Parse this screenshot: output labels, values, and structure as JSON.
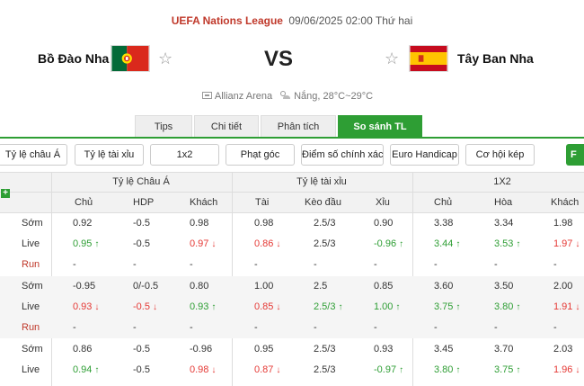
{
  "match": {
    "league": "UEFA Nations League",
    "datetime": "09/06/2025 02:00 Thứ hai",
    "home_team": "Bồ Đào Nha",
    "away_team": "Tây Ban Nha",
    "vs": "VS",
    "venue": "Allianz Arena",
    "weather": "Nắng, 28°C~29°C"
  },
  "tabs": [
    {
      "label": "Tips",
      "active": false
    },
    {
      "label": "Chi tiết",
      "active": false
    },
    {
      "label": "Phân tích",
      "active": false
    },
    {
      "label": "So sánh TL",
      "active": true
    }
  ],
  "subtabs": [
    "Tỷ lệ châu Á",
    "Tỷ lệ tài xỉu",
    "1x2",
    "Phạt góc",
    "Điểm số chính xác",
    "Euro Handicap",
    "Cơ hội kép"
  ],
  "subtab_right": "F",
  "table": {
    "plus": "+",
    "groups": [
      "Tỷ lệ Châu Á",
      "Tỷ lệ tài xỉu",
      "1X2"
    ],
    "columns": [
      "Chủ",
      "HDP",
      "Khách",
      "Tài",
      "Kèo đầu",
      "Xỉu",
      "Chủ",
      "Hòa",
      "Khách"
    ],
    "rows": [
      {
        "label": "Sớm",
        "type": "early",
        "cells": [
          "0.92",
          "-0.5",
          "0.98",
          "0.98",
          "2.5/3",
          "0.90",
          "3.38",
          "3.34",
          "1.98"
        ],
        "dirs": [
          "",
          "",
          "",
          "",
          "",
          "",
          "",
          "",
          ""
        ]
      },
      {
        "label": "Live",
        "type": "live",
        "cells": [
          "0.95",
          "-0.5",
          "0.97",
          "0.86",
          "2.5/3",
          "-0.96",
          "3.44",
          "3.53",
          "1.97"
        ],
        "dirs": [
          "up",
          "",
          "down",
          "down",
          "",
          "up",
          "up",
          "up",
          "down"
        ]
      },
      {
        "label": "Run",
        "type": "run",
        "cells": [
          "-",
          "-",
          "-",
          "-",
          "-",
          "-",
          "-",
          "-",
          "-"
        ],
        "dirs": [
          "",
          "",
          "",
          "",
          "",
          "",
          "",
          "",
          ""
        ]
      },
      {
        "label": "Sớm",
        "type": "early",
        "cells": [
          "-0.95",
          "0/-0.5",
          "0.80",
          "1.00",
          "2.5",
          "0.85",
          "3.60",
          "3.50",
          "2.00"
        ],
        "dirs": [
          "",
          "",
          "",
          "",
          "",
          "",
          "",
          "",
          ""
        ]
      },
      {
        "label": "Live",
        "type": "live",
        "cells": [
          "0.93",
          "-0.5",
          "0.93",
          "0.85",
          "2.5/3",
          "1.00",
          "3.75",
          "3.80",
          "1.91"
        ],
        "dirs": [
          "down",
          "down",
          "up",
          "down",
          "up",
          "up",
          "up",
          "up",
          "down"
        ]
      },
      {
        "label": "Run",
        "type": "run",
        "cells": [
          "-",
          "-",
          "-",
          "-",
          "-",
          "-",
          "-",
          "-",
          "-"
        ],
        "dirs": [
          "",
          "",
          "",
          "",
          "",
          "",
          "",
          "",
          ""
        ]
      },
      {
        "label": "Sớm",
        "type": "early",
        "cells": [
          "0.86",
          "-0.5",
          "-0.96",
          "0.95",
          "2.5/3",
          "0.93",
          "3.45",
          "3.70",
          "2.03"
        ],
        "dirs": [
          "",
          "",
          "",
          "",
          "",
          "",
          "",
          "",
          ""
        ]
      },
      {
        "label": "Live",
        "type": "live",
        "cells": [
          "0.94",
          "-0.5",
          "0.98",
          "0.87",
          "2.5/3",
          "-0.97",
          "3.80",
          "3.75",
          "1.96"
        ],
        "dirs": [
          "up",
          "",
          "down",
          "down",
          "",
          "up",
          "up",
          "up",
          "down"
        ]
      }
    ]
  },
  "colors": {
    "accent": "#2e9e34",
    "league": "#c0392b",
    "up": "#2e9e34",
    "down": "#e53935"
  }
}
